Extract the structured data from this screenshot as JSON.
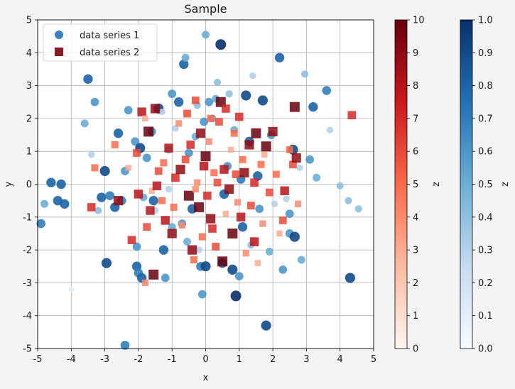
{
  "chart_data": {
    "type": "scatter",
    "title": "Sample",
    "xlabel": "x",
    "ylabel": "y",
    "xlim": [
      -5,
      5
    ],
    "ylim": [
      -5,
      5
    ],
    "xticks": [
      "-5",
      "-4",
      "-3",
      "-2",
      "-1",
      "0",
      "1",
      "2",
      "3",
      "4",
      "5"
    ],
    "yticks": [
      "-5",
      "-4",
      "-3",
      "-2",
      "-1",
      "0",
      "1",
      "2",
      "3",
      "4",
      "5"
    ],
    "grid": true,
    "legend_position": "top-left",
    "series": [
      {
        "name": "data series 1",
        "marker": "circle",
        "colormap": "Blues",
        "points": [
          [
            -4.9,
            -1.2,
            0.7
          ],
          [
            -4.8,
            -0.6,
            0.5
          ],
          [
            -4.6,
            0.05,
            0.8
          ],
          [
            -4.4,
            -0.5,
            0.8
          ],
          [
            -4.3,
            0.0,
            0.8
          ],
          [
            -4.2,
            -0.6,
            0.8
          ],
          [
            -4.0,
            -3.2,
            0.1
          ],
          [
            -3.6,
            1.85,
            0.5
          ],
          [
            -3.5,
            3.2,
            0.8
          ],
          [
            -3.4,
            0.9,
            0.3
          ],
          [
            -3.3,
            2.5,
            0.6
          ],
          [
            -3.2,
            -0.8,
            0.4
          ],
          [
            -3.1,
            -0.4,
            0.8
          ],
          [
            -3.0,
            0.4,
            0.9
          ],
          [
            -2.95,
            -2.4,
            0.9
          ],
          [
            -2.85,
            -0.35,
            0.7
          ],
          [
            -2.7,
            -0.7,
            0.8
          ],
          [
            -2.6,
            1.55,
            0.8
          ],
          [
            -2.5,
            -0.5,
            0.7
          ],
          [
            -2.4,
            0.4,
            0.6
          ],
          [
            -2.4,
            -4.9,
            0.7
          ],
          [
            -2.3,
            2.25,
            0.6
          ],
          [
            -2.1,
            1.3,
            0.6
          ],
          [
            -2.05,
            -2.5,
            0.8
          ],
          [
            -2.05,
            -1.9,
            0.6
          ],
          [
            -2.0,
            -2.7,
            0.7
          ],
          [
            -1.95,
            1.1,
            0.9
          ],
          [
            -1.9,
            -2.85,
            0.8
          ],
          [
            -1.85,
            -0.4,
            0.5
          ],
          [
            -1.75,
            0.8,
            0.6
          ],
          [
            -1.6,
            1.6,
            0.6
          ],
          [
            -1.55,
            -0.5,
            0.8
          ],
          [
            -1.5,
            -0.8,
            0.3
          ],
          [
            -1.4,
            2.3,
            0.9
          ],
          [
            -1.3,
            2.2,
            0.3
          ],
          [
            -1.25,
            -2.0,
            0.8
          ],
          [
            -1.2,
            -2.85,
            0.6
          ],
          [
            -1.1,
            1.05,
            0.5
          ],
          [
            -1.0,
            -1.3,
            0.5
          ],
          [
            -1.0,
            2.75,
            0.6
          ],
          [
            -0.9,
            1.7,
            0.3
          ],
          [
            -0.8,
            2.5,
            0.8
          ],
          [
            -0.7,
            -1.2,
            0.6
          ],
          [
            -0.65,
            3.65,
            0.8
          ],
          [
            -0.6,
            3.85,
            0.5
          ],
          [
            -0.55,
            -1.75,
            0.5
          ],
          [
            -0.5,
            0.95,
            0.6
          ],
          [
            -0.3,
            1.45,
            0.5
          ],
          [
            -0.25,
            2.4,
            0.4
          ],
          [
            -0.2,
            -2.0,
            0.3
          ],
          [
            -0.15,
            -2.5,
            0.7
          ],
          [
            -0.1,
            -3.35,
            0.6
          ],
          [
            -0.05,
            1.9,
            0.6
          ],
          [
            0.0,
            -2.5,
            0.9
          ],
          [
            0.0,
            4.55,
            0.5
          ],
          [
            0.1,
            2.5,
            0.6
          ],
          [
            0.2,
            2.0,
            0.5
          ],
          [
            0.3,
            2.6,
            0.5
          ],
          [
            0.35,
            3.1,
            0.4
          ],
          [
            0.45,
            4.25,
            1.0
          ],
          [
            0.5,
            -2.4,
            0.8
          ],
          [
            0.55,
            -0.3,
            0.8
          ],
          [
            0.7,
            2.75,
            0.4
          ],
          [
            0.8,
            -2.6,
            0.9
          ],
          [
            0.85,
            1.65,
            0.5
          ],
          [
            0.9,
            -3.4,
            1.0
          ],
          [
            1.0,
            -2.8,
            0.6
          ],
          [
            1.05,
            0.15,
            0.7
          ],
          [
            1.1,
            -1.3,
            0.8
          ],
          [
            1.2,
            2.7,
            0.9
          ],
          [
            1.3,
            1.3,
            0.8
          ],
          [
            1.4,
            3.3,
            0.3
          ],
          [
            1.55,
            0.25,
            0.8
          ],
          [
            1.6,
            -0.75,
            0.6
          ],
          [
            1.7,
            2.55,
            0.9
          ],
          [
            1.8,
            -4.3,
            0.9
          ],
          [
            1.9,
            -2.05,
            0.5
          ],
          [
            1.95,
            1.5,
            0.6
          ],
          [
            2.05,
            -0.6,
            0.3
          ],
          [
            2.2,
            3.85,
            0.8
          ],
          [
            2.3,
            -2.6,
            0.6
          ],
          [
            2.4,
            -0.45,
            0.3
          ],
          [
            2.5,
            -0.9,
            0.6
          ],
          [
            2.5,
            -1.5,
            0.6
          ],
          [
            2.6,
            1.05,
            0.9
          ],
          [
            2.65,
            -1.6,
            0.9
          ],
          [
            2.8,
            0.5,
            0.3
          ],
          [
            2.85,
            -2.3,
            0.5
          ],
          [
            2.95,
            3.35,
            0.4
          ],
          [
            3.1,
            0.75,
            0.6
          ],
          [
            3.2,
            2.35,
            0.8
          ],
          [
            3.3,
            0.2,
            0.5
          ],
          [
            3.6,
            2.85,
            0.7
          ],
          [
            3.7,
            1.65,
            0.3
          ],
          [
            4.0,
            -0.05,
            0.4
          ],
          [
            4.25,
            -0.5,
            0.4
          ],
          [
            4.3,
            -2.85,
            0.9
          ],
          [
            4.55,
            -0.75,
            0.4
          ],
          [
            -1.1,
            -0.15,
            0.3
          ],
          [
            0.65,
            0.55,
            0.6
          ],
          [
            -0.4,
            -0.75,
            0.8
          ],
          [
            1.35,
            -1.85,
            0.4
          ]
        ]
      },
      {
        "name": "data series 2",
        "marker": "square",
        "colormap": "Reds",
        "points": [
          [
            -3.4,
            -0.7,
            7
          ],
          [
            -3.3,
            0.5,
            5
          ],
          [
            -2.7,
            1.2,
            5
          ],
          [
            -2.6,
            -0.5,
            9
          ],
          [
            -2.3,
            0.5,
            3
          ],
          [
            -2.2,
            -1.7,
            7
          ],
          [
            -2.0,
            -0.3,
            8
          ],
          [
            -1.9,
            2.2,
            8
          ],
          [
            -1.8,
            2.0,
            3
          ],
          [
            -1.8,
            -3.0,
            4
          ],
          [
            -1.7,
            1.6,
            10
          ],
          [
            -1.65,
            -0.8,
            8
          ],
          [
            -1.6,
            -0.2,
            3
          ],
          [
            -1.55,
            -2.75,
            10
          ],
          [
            -1.5,
            2.3,
            9
          ],
          [
            -1.4,
            0.4,
            6
          ],
          [
            -1.3,
            -0.5,
            5
          ],
          [
            -1.2,
            -1.1,
            8
          ],
          [
            -1.1,
            1.1,
            8
          ],
          [
            -1.0,
            -1.5,
            9
          ],
          [
            -0.9,
            0.2,
            7
          ],
          [
            -0.8,
            1.85,
            4
          ],
          [
            -0.7,
            -1.25,
            4
          ],
          [
            -0.6,
            0.75,
            6
          ],
          [
            -0.5,
            -0.35,
            10
          ],
          [
            -0.45,
            1.2,
            7
          ],
          [
            -0.4,
            -2.0,
            9
          ],
          [
            -0.3,
            2.55,
            6
          ],
          [
            -0.25,
            0.05,
            4
          ],
          [
            -0.2,
            -0.7,
            10
          ],
          [
            -0.15,
            1.55,
            9
          ],
          [
            -0.1,
            -1.6,
            5
          ],
          [
            0.0,
            0.85,
            10
          ],
          [
            0.05,
            -0.35,
            7
          ],
          [
            0.1,
            1.3,
            4
          ],
          [
            0.15,
            -1.05,
            9
          ],
          [
            0.25,
            0.35,
            5
          ],
          [
            0.3,
            -1.9,
            6
          ],
          [
            0.4,
            1.9,
            6
          ],
          [
            0.45,
            2.5,
            10
          ],
          [
            0.5,
            -2.35,
            10
          ],
          [
            0.55,
            0.45,
            8
          ],
          [
            0.6,
            2.3,
            7
          ],
          [
            0.7,
            -0.15,
            9
          ],
          [
            0.75,
            1.05,
            3
          ],
          [
            0.8,
            -1.5,
            10
          ],
          [
            0.9,
            0.3,
            6
          ],
          [
            1.0,
            2.05,
            7
          ],
          [
            1.05,
            -1.0,
            8
          ],
          [
            1.1,
            0.75,
            5
          ],
          [
            1.2,
            -2.1,
            4
          ],
          [
            1.3,
            1.2,
            9
          ],
          [
            1.35,
            -0.65,
            6
          ],
          [
            1.45,
            0.05,
            7
          ],
          [
            1.5,
            1.55,
            10
          ],
          [
            1.55,
            -2.4,
            3
          ],
          [
            1.65,
            0.6,
            5
          ],
          [
            1.7,
            -1.2,
            4
          ],
          [
            1.8,
            1.15,
            10
          ],
          [
            1.9,
            -0.25,
            6
          ],
          [
            2.0,
            1.6,
            9
          ],
          [
            2.1,
            0.3,
            5
          ],
          [
            2.2,
            -1.5,
            3
          ],
          [
            2.3,
            -1.1,
            6
          ],
          [
            2.5,
            1.05,
            5
          ],
          [
            2.6,
            0.6,
            6
          ],
          [
            2.65,
            2.35,
            10
          ],
          [
            2.7,
            0.8,
            9
          ],
          [
            2.75,
            -0.6,
            4
          ],
          [
            4.35,
            2.1,
            7
          ],
          [
            -0.3,
            -0.15,
            4
          ],
          [
            0.35,
            0.05,
            6
          ],
          [
            -0.75,
            0.45,
            9
          ],
          [
            0.95,
            -0.55,
            4
          ],
          [
            -1.25,
            0.65,
            5
          ],
          [
            0.15,
            2.0,
            5
          ],
          [
            1.45,
            -1.75,
            8
          ],
          [
            -2.05,
            0.95,
            6
          ],
          [
            0.6,
            -0.9,
            3
          ],
          [
            -0.95,
            -0.7,
            5
          ],
          [
            1.15,
            0.35,
            9
          ],
          [
            -0.55,
            2.15,
            6
          ],
          [
            0.2,
            -1.35,
            7
          ],
          [
            -1.45,
            -0.05,
            8
          ],
          [
            1.75,
            0.9,
            3
          ],
          [
            -0.05,
            0.55,
            8
          ],
          [
            0.85,
            1.55,
            5
          ],
          [
            -1.75,
            -1.3,
            6
          ],
          [
            2.35,
            -0.2,
            8
          ],
          [
            -0.35,
            -2.3,
            5
          ]
        ]
      }
    ],
    "colorbars": [
      {
        "series": "data series 2",
        "colormap": "Reds",
        "label": "z",
        "range": [
          0,
          10
        ],
        "ticks": [
          "0",
          "1",
          "2",
          "3",
          "4",
          "5",
          "6",
          "7",
          "8",
          "9",
          "10"
        ]
      },
      {
        "series": "data series 1",
        "colormap": "Blues",
        "label": "z",
        "range": [
          0.0,
          1.0
        ],
        "ticks": [
          "0.0",
          "0.1",
          "0.2",
          "0.3",
          "0.4",
          "0.5",
          "0.6",
          "0.7",
          "0.8",
          "0.9",
          "1.0"
        ]
      }
    ]
  }
}
